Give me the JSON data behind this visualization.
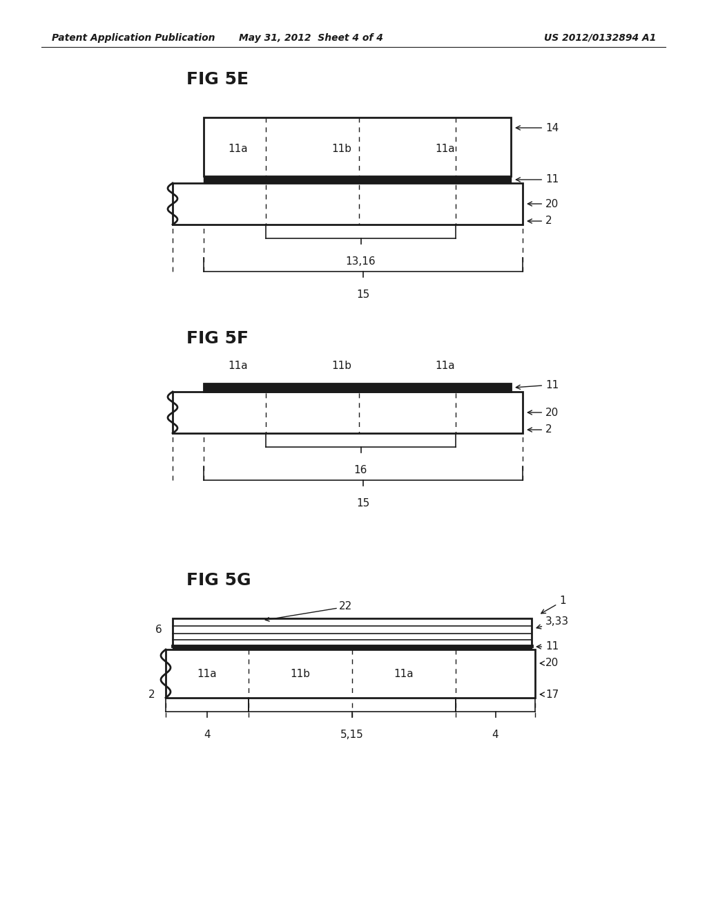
{
  "bg_color": "#ffffff",
  "header_left": "Patent Application Publication",
  "header_mid": "May 31, 2012  Sheet 4 of 4",
  "header_right": "US 2012/0132894 A1"
}
